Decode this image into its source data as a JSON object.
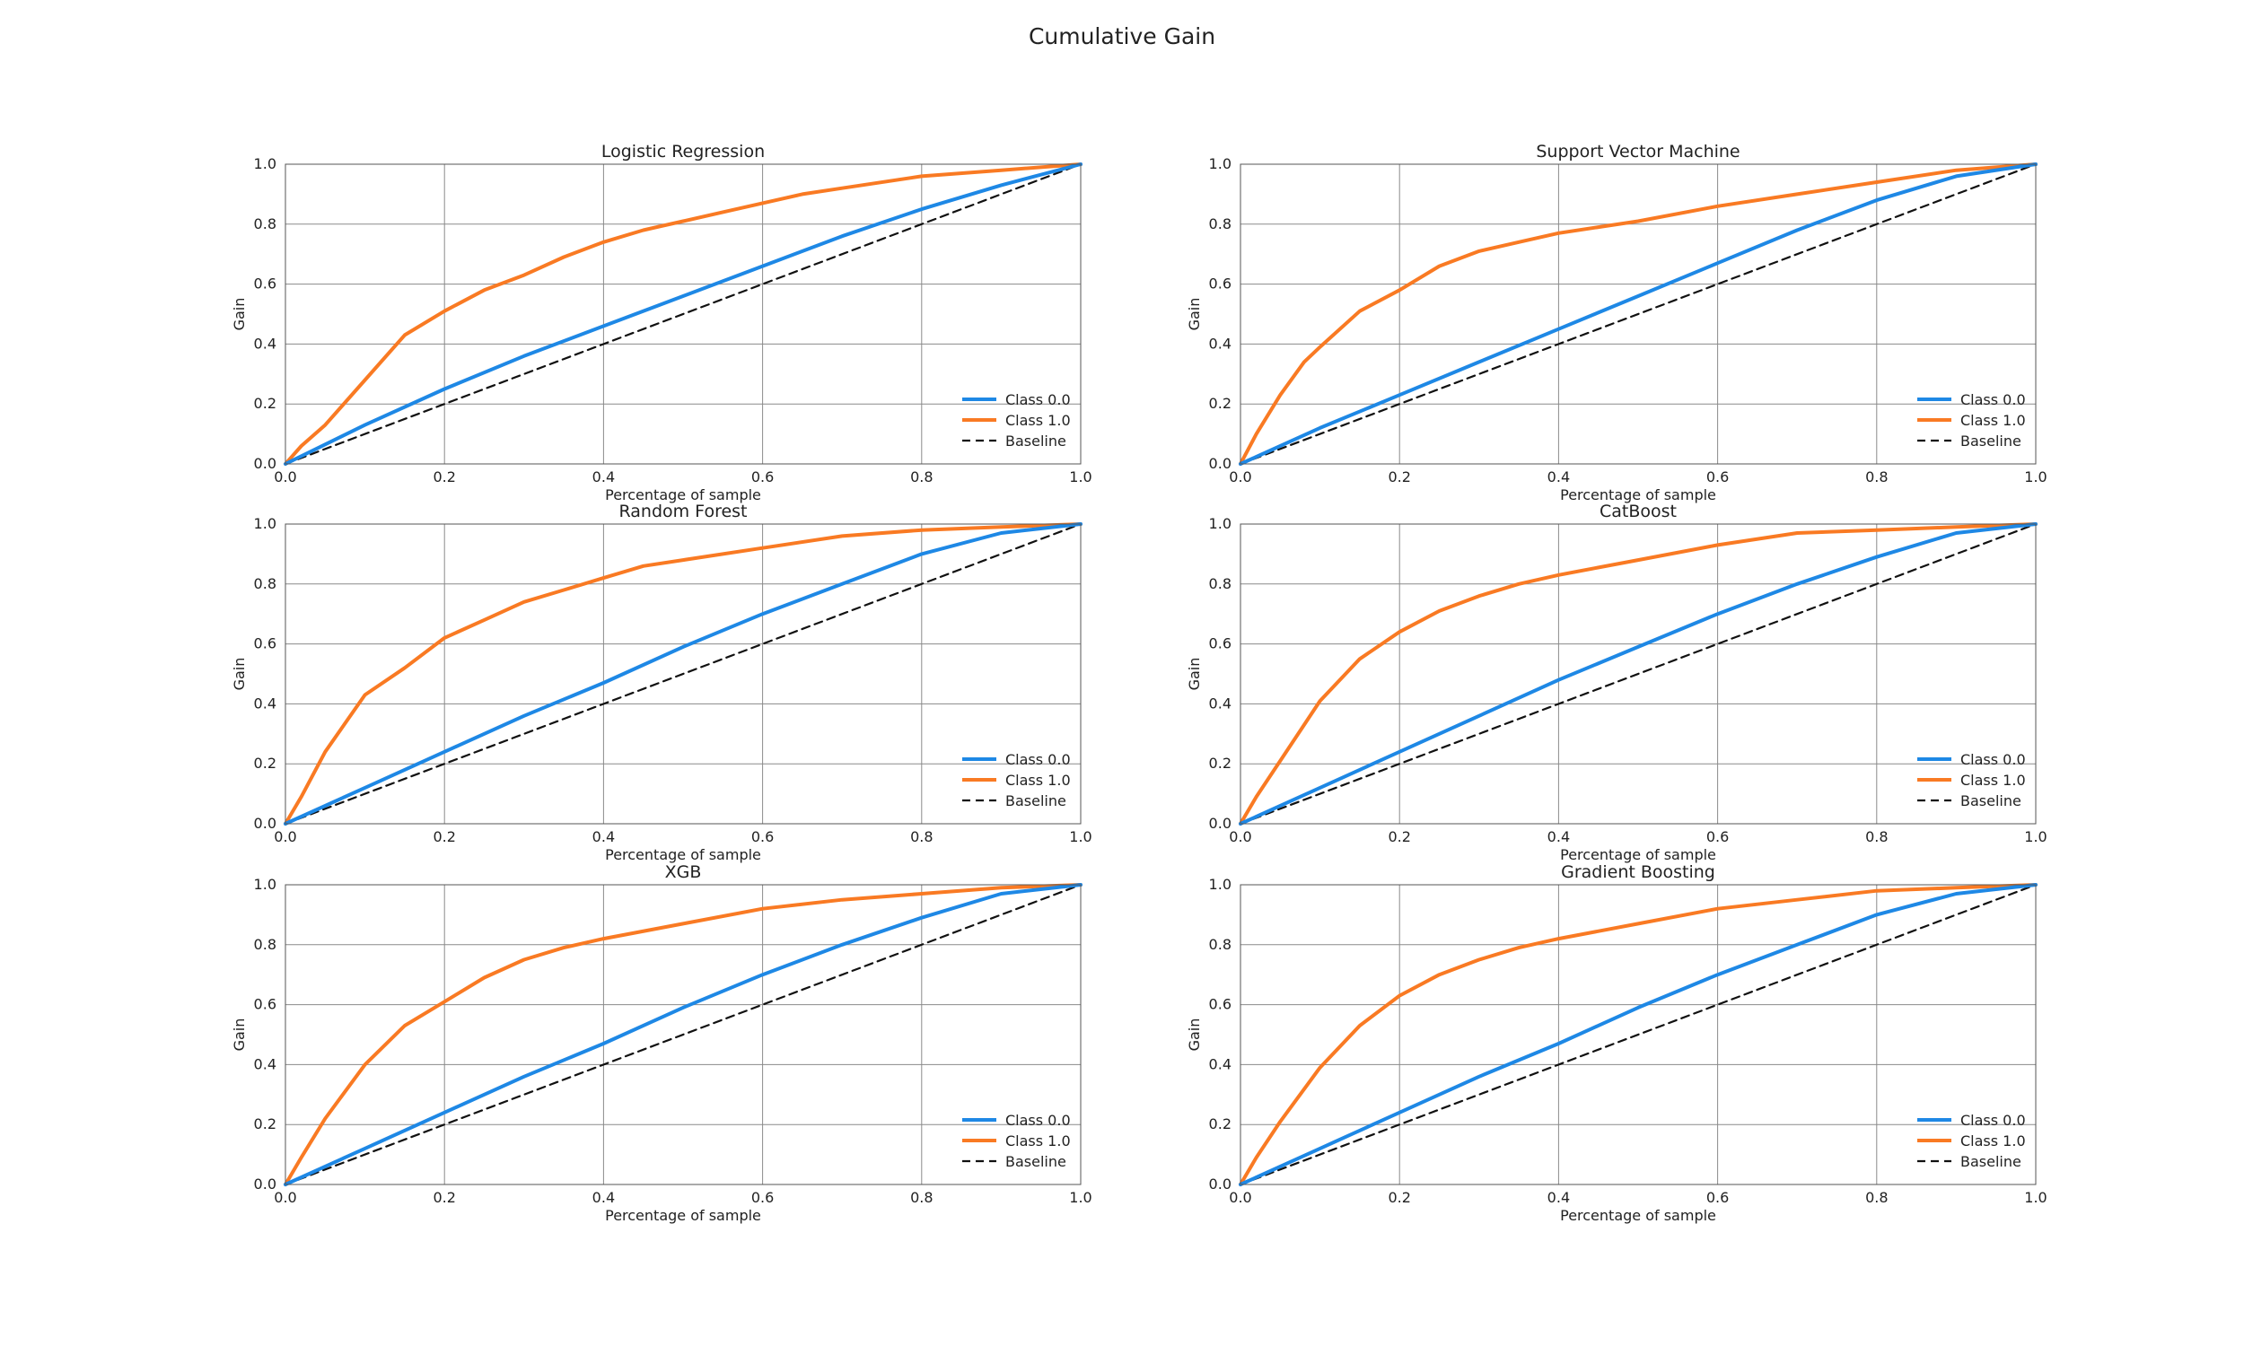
{
  "suptitle": "Cumulative Gain",
  "colors": {
    "class_0": "#1e88e5",
    "class_1": "#f97a23",
    "baseline": "#111111",
    "grid": "#8a8a8a"
  },
  "chart_data": [
    {
      "type": "line",
      "title": "Logistic Regression",
      "xlabel": "Percentage of sample",
      "ylabel": "Gain",
      "xlim": [
        0,
        1
      ],
      "ylim": [
        0,
        1
      ],
      "grid": true,
      "legend": "bottom-right",
      "xticks": [
        "0.0",
        "0.2",
        "0.4",
        "0.6",
        "0.8",
        "1.0"
      ],
      "yticks": [
        "0.0",
        "0.2",
        "0.4",
        "0.6",
        "0.8",
        "1.0"
      ],
      "series": [
        {
          "name": "Class 0.0",
          "x": [
            0,
            0.1,
            0.2,
            0.3,
            0.4,
            0.5,
            0.6,
            0.7,
            0.8,
            0.9,
            1.0
          ],
          "y": [
            0,
            0.13,
            0.25,
            0.36,
            0.46,
            0.56,
            0.66,
            0.76,
            0.85,
            0.93,
            1.0
          ]
        },
        {
          "name": "Class 1.0",
          "x": [
            0,
            0.02,
            0.05,
            0.1,
            0.15,
            0.2,
            0.25,
            0.3,
            0.35,
            0.4,
            0.45,
            0.5,
            0.55,
            0.6,
            0.65,
            0.7,
            0.8,
            0.9,
            1.0
          ],
          "y": [
            0,
            0.06,
            0.13,
            0.28,
            0.43,
            0.51,
            0.58,
            0.63,
            0.69,
            0.74,
            0.78,
            0.81,
            0.84,
            0.87,
            0.9,
            0.92,
            0.96,
            0.98,
            1.0
          ]
        },
        {
          "name": "Baseline",
          "x": [
            0,
            1
          ],
          "y": [
            0,
            1
          ]
        }
      ]
    },
    {
      "type": "line",
      "title": "Support Vector Machine",
      "xlabel": "Percentage of sample",
      "ylabel": "Gain",
      "xlim": [
        0,
        1
      ],
      "ylim": [
        0,
        1
      ],
      "grid": true,
      "legend": "bottom-right",
      "xticks": [
        "0.0",
        "0.2",
        "0.4",
        "0.6",
        "0.8",
        "1.0"
      ],
      "yticks": [
        "0.0",
        "0.2",
        "0.4",
        "0.6",
        "0.8",
        "1.0"
      ],
      "series": [
        {
          "name": "Class 0.0",
          "x": [
            0,
            0.1,
            0.2,
            0.3,
            0.4,
            0.5,
            0.6,
            0.7,
            0.8,
            0.9,
            1.0
          ],
          "y": [
            0,
            0.12,
            0.23,
            0.34,
            0.45,
            0.56,
            0.67,
            0.78,
            0.88,
            0.96,
            1.0
          ]
        },
        {
          "name": "Class 1.0",
          "x": [
            0,
            0.02,
            0.05,
            0.08,
            0.1,
            0.15,
            0.2,
            0.25,
            0.3,
            0.35,
            0.4,
            0.5,
            0.6,
            0.7,
            0.8,
            0.9,
            1.0
          ],
          "y": [
            0,
            0.1,
            0.23,
            0.34,
            0.39,
            0.51,
            0.58,
            0.66,
            0.71,
            0.74,
            0.77,
            0.81,
            0.86,
            0.9,
            0.94,
            0.98,
            1.0
          ]
        },
        {
          "name": "Baseline",
          "x": [
            0,
            1
          ],
          "y": [
            0,
            1
          ]
        }
      ]
    },
    {
      "type": "line",
      "title": "Random Forest",
      "xlabel": "Percentage of sample",
      "ylabel": "Gain",
      "xlim": [
        0,
        1
      ],
      "ylim": [
        0,
        1
      ],
      "grid": true,
      "legend": "bottom-right",
      "xticks": [
        "0.0",
        "0.2",
        "0.4",
        "0.6",
        "0.8",
        "1.0"
      ],
      "yticks": [
        "0.0",
        "0.2",
        "0.4",
        "0.6",
        "0.8",
        "1.0"
      ],
      "series": [
        {
          "name": "Class 0.0",
          "x": [
            0,
            0.1,
            0.2,
            0.3,
            0.4,
            0.5,
            0.6,
            0.7,
            0.8,
            0.9,
            1.0
          ],
          "y": [
            0,
            0.12,
            0.24,
            0.36,
            0.47,
            0.59,
            0.7,
            0.8,
            0.9,
            0.97,
            1.0
          ]
        },
        {
          "name": "Class 1.0",
          "x": [
            0,
            0.02,
            0.05,
            0.1,
            0.15,
            0.2,
            0.25,
            0.3,
            0.35,
            0.4,
            0.45,
            0.5,
            0.6,
            0.7,
            0.8,
            0.9,
            1.0
          ],
          "y": [
            0,
            0.09,
            0.24,
            0.43,
            0.52,
            0.62,
            0.68,
            0.74,
            0.78,
            0.82,
            0.86,
            0.88,
            0.92,
            0.96,
            0.98,
            0.99,
            1.0
          ]
        },
        {
          "name": "Baseline",
          "x": [
            0,
            1
          ],
          "y": [
            0,
            1
          ]
        }
      ]
    },
    {
      "type": "line",
      "title": "CatBoost",
      "xlabel": "Percentage of sample",
      "ylabel": "Gain",
      "xlim": [
        0,
        1
      ],
      "ylim": [
        0,
        1
      ],
      "grid": true,
      "legend": "bottom-right",
      "xticks": [
        "0.0",
        "0.2",
        "0.4",
        "0.6",
        "0.8",
        "1.0"
      ],
      "yticks": [
        "0.0",
        "0.2",
        "0.4",
        "0.6",
        "0.8",
        "1.0"
      ],
      "series": [
        {
          "name": "Class 0.0",
          "x": [
            0,
            0.1,
            0.2,
            0.3,
            0.4,
            0.5,
            0.6,
            0.7,
            0.8,
            0.9,
            1.0
          ],
          "y": [
            0,
            0.12,
            0.24,
            0.36,
            0.48,
            0.59,
            0.7,
            0.8,
            0.89,
            0.97,
            1.0
          ]
        },
        {
          "name": "Class 1.0",
          "x": [
            0,
            0.02,
            0.05,
            0.1,
            0.15,
            0.2,
            0.25,
            0.3,
            0.35,
            0.4,
            0.5,
            0.6,
            0.7,
            0.8,
            0.9,
            1.0
          ],
          "y": [
            0,
            0.09,
            0.21,
            0.41,
            0.55,
            0.64,
            0.71,
            0.76,
            0.8,
            0.83,
            0.88,
            0.93,
            0.97,
            0.98,
            0.99,
            1.0
          ]
        },
        {
          "name": "Baseline",
          "x": [
            0,
            1
          ],
          "y": [
            0,
            1
          ]
        }
      ]
    },
    {
      "type": "line",
      "title": "XGB",
      "xlabel": "Percentage of sample",
      "ylabel": "Gain",
      "xlim": [
        0,
        1
      ],
      "ylim": [
        0,
        1
      ],
      "grid": true,
      "legend": "bottom-right",
      "xticks": [
        "0.0",
        "0.2",
        "0.4",
        "0.6",
        "0.8",
        "1.0"
      ],
      "yticks": [
        "0.0",
        "0.2",
        "0.4",
        "0.6",
        "0.8",
        "1.0"
      ],
      "series": [
        {
          "name": "Class 0.0",
          "x": [
            0,
            0.1,
            0.2,
            0.3,
            0.4,
            0.5,
            0.6,
            0.7,
            0.8,
            0.9,
            1.0
          ],
          "y": [
            0,
            0.12,
            0.24,
            0.36,
            0.47,
            0.59,
            0.7,
            0.8,
            0.89,
            0.97,
            1.0
          ]
        },
        {
          "name": "Class 1.0",
          "x": [
            0,
            0.02,
            0.05,
            0.1,
            0.15,
            0.2,
            0.25,
            0.3,
            0.35,
            0.4,
            0.5,
            0.6,
            0.7,
            0.8,
            0.9,
            1.0
          ],
          "y": [
            0,
            0.09,
            0.22,
            0.4,
            0.53,
            0.61,
            0.69,
            0.75,
            0.79,
            0.82,
            0.87,
            0.92,
            0.95,
            0.97,
            0.99,
            1.0
          ]
        },
        {
          "name": "Baseline",
          "x": [
            0,
            1
          ],
          "y": [
            0,
            1
          ]
        }
      ]
    },
    {
      "type": "line",
      "title": "Gradient Boosting",
      "xlabel": "Percentage of sample",
      "ylabel": "Gain",
      "xlim": [
        0,
        1
      ],
      "ylim": [
        0,
        1
      ],
      "grid": true,
      "legend": "bottom-right",
      "xticks": [
        "0.0",
        "0.2",
        "0.4",
        "0.6",
        "0.8",
        "1.0"
      ],
      "yticks": [
        "0.0",
        "0.2",
        "0.4",
        "0.6",
        "0.8",
        "1.0"
      ],
      "series": [
        {
          "name": "Class 0.0",
          "x": [
            0,
            0.1,
            0.2,
            0.3,
            0.4,
            0.5,
            0.6,
            0.7,
            0.8,
            0.9,
            1.0
          ],
          "y": [
            0,
            0.12,
            0.24,
            0.36,
            0.47,
            0.59,
            0.7,
            0.8,
            0.9,
            0.97,
            1.0
          ]
        },
        {
          "name": "Class 1.0",
          "x": [
            0,
            0.02,
            0.05,
            0.1,
            0.15,
            0.2,
            0.25,
            0.3,
            0.35,
            0.4,
            0.5,
            0.6,
            0.7,
            0.8,
            0.9,
            1.0
          ],
          "y": [
            0,
            0.09,
            0.21,
            0.39,
            0.53,
            0.63,
            0.7,
            0.75,
            0.79,
            0.82,
            0.87,
            0.92,
            0.95,
            0.98,
            0.99,
            1.0
          ]
        },
        {
          "name": "Baseline",
          "x": [
            0,
            1
          ],
          "y": [
            0,
            1
          ]
        }
      ]
    }
  ]
}
